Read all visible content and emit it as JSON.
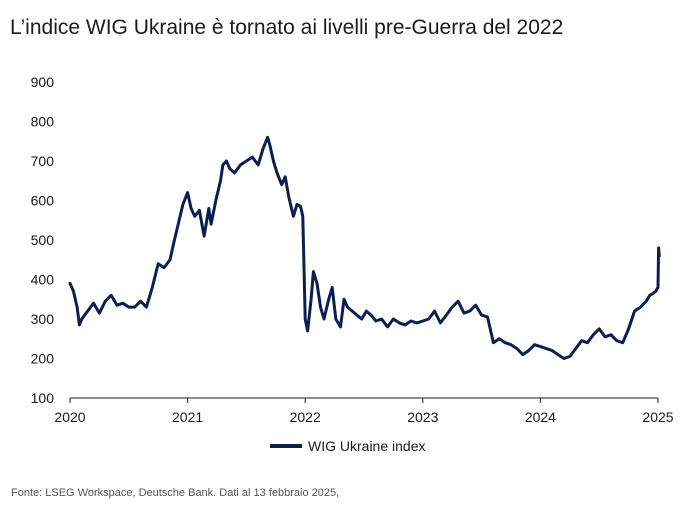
{
  "title": "L’indice WIG Ukraine è tornato ai livelli pre-Guerra del 2022",
  "source": "Fonte: LSEG Workspace, Deutsche Bank. Dati al 13 febbraio 2025,",
  "colors": {
    "line": "#0d1f4f",
    "axis": "#222222"
  },
  "chart_data": {
    "type": "line",
    "title": "L’indice WIG Ukraine è tornato ai livelli pre-Guerra del 2022",
    "xlabel": "",
    "ylabel": "",
    "xlim": [
      2020,
      2025
    ],
    "ylim": [
      100,
      900
    ],
    "x_ticks": [
      "2020",
      "2021",
      "2022",
      "2023",
      "2024",
      "2025"
    ],
    "y_ticks": [
      "900",
      "800",
      "700",
      "600",
      "500",
      "400",
      "300",
      "200",
      "100"
    ],
    "grid": false,
    "legend": "bottom",
    "series": [
      {
        "name": "WIG Ukraine index",
        "x": [
          2020.0,
          2020.03,
          2020.06,
          2020.08,
          2020.1,
          2020.15,
          2020.2,
          2020.25,
          2020.3,
          2020.35,
          2020.4,
          2020.45,
          2020.5,
          2020.55,
          2020.6,
          2020.65,
          2020.7,
          2020.75,
          2020.8,
          2020.85,
          2020.88,
          2020.92,
          2020.96,
          2021.0,
          2021.03,
          2021.06,
          2021.1,
          2021.14,
          2021.18,
          2021.2,
          2021.24,
          2021.28,
          2021.3,
          2021.33,
          2021.36,
          2021.4,
          2021.45,
          2021.5,
          2021.55,
          2021.6,
          2021.64,
          2021.68,
          2021.7,
          2021.73,
          2021.76,
          2021.8,
          2021.83,
          2021.86,
          2021.9,
          2021.93,
          2021.96,
          2021.98,
          2022.0,
          2022.02,
          2022.05,
          2022.07,
          2022.1,
          2022.13,
          2022.16,
          2022.2,
          2022.23,
          2022.26,
          2022.3,
          2022.33,
          2022.36,
          2022.4,
          2022.44,
          2022.48,
          2022.52,
          2022.56,
          2022.6,
          2022.65,
          2022.7,
          2022.75,
          2022.8,
          2022.85,
          2022.9,
          2022.95,
          2023.0,
          2023.05,
          2023.1,
          2023.15,
          2023.2,
          2023.25,
          2023.3,
          2023.35,
          2023.4,
          2023.45,
          2023.5,
          2023.55,
          2023.6,
          2023.65,
          2023.7,
          2023.75,
          2023.8,
          2023.85,
          2023.9,
          2023.95,
          2024.0,
          2024.05,
          2024.1,
          2024.15,
          2024.2,
          2024.25,
          2024.3,
          2024.35,
          2024.4,
          2024.45,
          2024.5,
          2024.55,
          2024.6,
          2024.65,
          2024.7,
          2024.75,
          2024.8,
          2024.85,
          2024.9,
          2024.93,
          2024.96,
          2024.98,
          2025.0,
          2025.005,
          2025.01
        ],
        "y": [
          390,
          370,
          330,
          285,
          300,
          320,
          340,
          315,
          345,
          360,
          335,
          340,
          330,
          330,
          345,
          330,
          380,
          440,
          430,
          450,
          490,
          540,
          590,
          620,
          580,
          560,
          575,
          510,
          580,
          540,
          600,
          650,
          690,
          700,
          680,
          670,
          690,
          700,
          710,
          690,
          730,
          760,
          740,
          700,
          670,
          640,
          660,
          610,
          560,
          590,
          585,
          560,
          300,
          270,
          350,
          420,
          390,
          330,
          300,
          350,
          380,
          300,
          280,
          350,
          330,
          320,
          310,
          300,
          320,
          310,
          295,
          300,
          280,
          300,
          290,
          285,
          295,
          290,
          295,
          300,
          320,
          290,
          310,
          330,
          345,
          315,
          320,
          335,
          310,
          305,
          240,
          250,
          240,
          235,
          225,
          210,
          220,
          235,
          230,
          225,
          220,
          210,
          200,
          205,
          225,
          245,
          240,
          260,
          275,
          255,
          260,
          245,
          240,
          275,
          320,
          330,
          345,
          360,
          365,
          370,
          380,
          480,
          460
        ]
      }
    ]
  }
}
